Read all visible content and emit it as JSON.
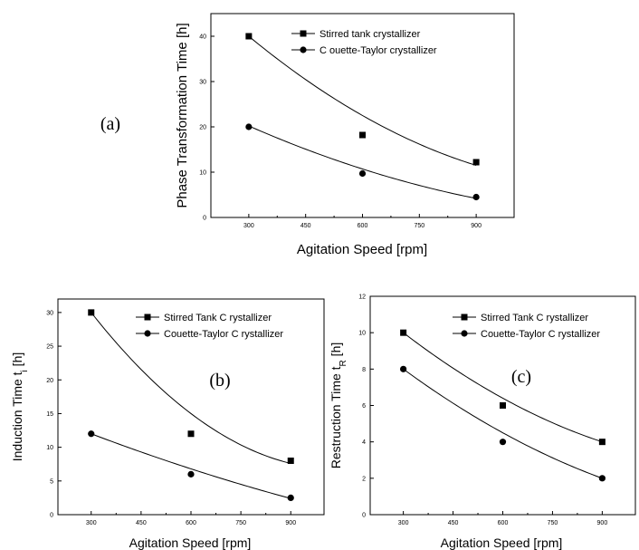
{
  "chart_data": [
    {
      "type": "scatter",
      "panel_label": "(a)",
      "xlabel": "Agitation Speed [rpm]",
      "ylabel": "Phase Transformation Time [h]",
      "ylabel_sub": "",
      "xlim": [
        200,
        1000
      ],
      "ylim": [
        0,
        45
      ],
      "xticks": [
        300,
        450,
        600,
        750,
        900
      ],
      "yticks": [
        0,
        10,
        20,
        30,
        40
      ],
      "legend_position": "top-right",
      "series": [
        {
          "name": "Stirred tank crystallizer",
          "marker": "square",
          "x": [
            300,
            600,
            900
          ],
          "y": [
            40,
            18.2,
            12.2
          ],
          "fit": [
            40,
            22.5,
            11.5
          ]
        },
        {
          "name": "C ouette-Taylor crystallizer",
          "marker": "circle",
          "x": [
            300,
            600,
            900
          ],
          "y": [
            20,
            9.7,
            4.5
          ],
          "fit": [
            20.2,
            10.7,
            4.2
          ]
        }
      ]
    },
    {
      "type": "scatter",
      "panel_label": "(b)",
      "xlabel": "Agitation Speed [rpm]",
      "ylabel": "Induction Time t",
      "ylabel_sub": "i",
      "ylabel_unit": " [h]",
      "xlim": [
        200,
        1000
      ],
      "ylim": [
        0,
        32
      ],
      "xticks": [
        300,
        450,
        600,
        750,
        900
      ],
      "yticks": [
        0,
        5,
        10,
        15,
        20,
        25,
        30
      ],
      "legend_position": "top-right",
      "series": [
        {
          "name": "Stirred Tank C rystallizer",
          "marker": "square",
          "x": [
            300,
            600,
            900
          ],
          "y": [
            30,
            12,
            8
          ],
          "fit": [
            30,
            15,
            7.6
          ]
        },
        {
          "name": "Couette-Taylor C rystallizer",
          "marker": "circle",
          "x": [
            300,
            600,
            900
          ],
          "y": [
            12,
            6,
            2.5
          ],
          "fit": [
            12,
            6.8,
            2.4
          ]
        }
      ]
    },
    {
      "type": "scatter",
      "panel_label": "(c)",
      "xlabel": "Agitation Speed [rpm]",
      "ylabel": "Restruction Time t",
      "ylabel_sub": "R",
      "ylabel_unit": " [h]",
      "xlim": [
        200,
        1000
      ],
      "ylim": [
        0,
        12
      ],
      "xticks": [
        300,
        450,
        600,
        750,
        900
      ],
      "yticks": [
        0,
        2,
        4,
        6,
        8,
        10,
        12
      ],
      "legend_position": "top-right",
      "series": [
        {
          "name": "Stirred Tank C rystallizer",
          "marker": "square",
          "x": [
            300,
            600,
            900
          ],
          "y": [
            10,
            6,
            4
          ],
          "fit": [
            10,
            6.4,
            4
          ]
        },
        {
          "name": "Couette-Taylor C rystallizer",
          "marker": "circle",
          "x": [
            300,
            600,
            900
          ],
          "y": [
            8,
            4,
            2
          ],
          "fit": [
            8,
            4.5,
            2
          ]
        }
      ]
    }
  ]
}
